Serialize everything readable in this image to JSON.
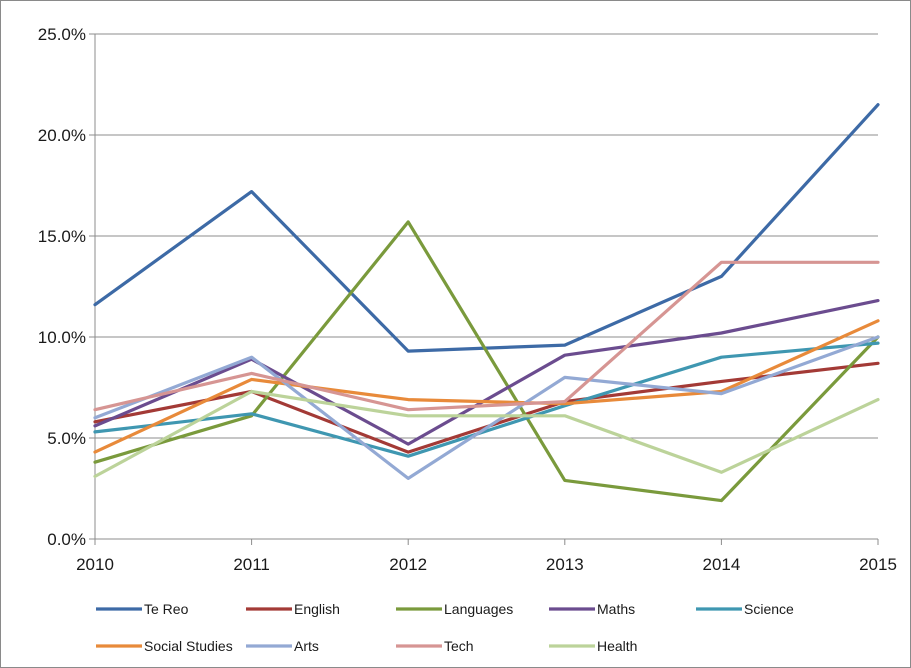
{
  "chart_data": {
    "type": "line",
    "x": [
      "2010",
      "2011",
      "2012",
      "2013",
      "2014",
      "2015"
    ],
    "ylim": [
      0,
      25
    ],
    "yticks": [
      "0.0%",
      "5.0%",
      "10.0%",
      "15.0%",
      "20.0%",
      "25.0%"
    ],
    "grid": true,
    "legend_position": "bottom",
    "series": [
      {
        "name": "Te Reo",
        "color": "#3d6aa6",
        "values": [
          11.6,
          17.2,
          9.3,
          9.6,
          13.0,
          21.5
        ]
      },
      {
        "name": "English",
        "color": "#a33a36",
        "values": [
          5.8,
          7.3,
          4.3,
          6.8,
          7.8,
          8.7
        ]
      },
      {
        "name": "Languages",
        "color": "#7a9a3c",
        "values": [
          3.8,
          6.1,
          15.7,
          2.9,
          1.9,
          10.0
        ]
      },
      {
        "name": "Maths",
        "color": "#6b4c8f",
        "values": [
          5.6,
          8.9,
          4.7,
          9.1,
          10.2,
          11.8
        ]
      },
      {
        "name": "Science",
        "color": "#3f97b1",
        "values": [
          5.3,
          6.2,
          4.1,
          6.6,
          9.0,
          9.7
        ]
      },
      {
        "name": "Social Studies",
        "color": "#e88a3a",
        "values": [
          4.3,
          7.9,
          6.9,
          6.7,
          7.3,
          10.8
        ]
      },
      {
        "name": "Arts",
        "color": "#93a9d4",
        "values": [
          6.0,
          9.0,
          3.0,
          8.0,
          7.2,
          10.0
        ]
      },
      {
        "name": "Tech",
        "color": "#d69593",
        "values": [
          6.4,
          8.2,
          6.4,
          6.8,
          13.7,
          13.7
        ]
      },
      {
        "name": "Health",
        "color": "#bcd39a",
        "values": [
          3.1,
          7.3,
          6.1,
          6.1,
          3.3,
          6.9
        ]
      }
    ]
  }
}
